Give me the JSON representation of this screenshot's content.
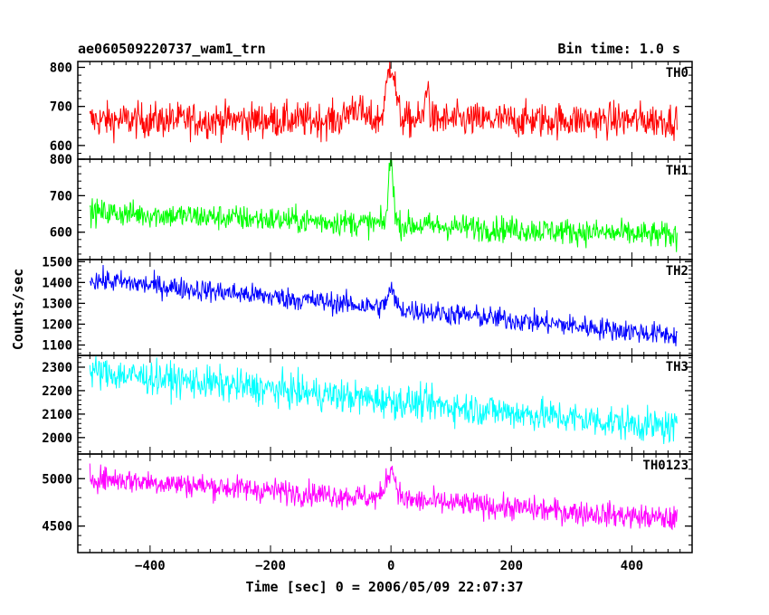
{
  "header": {
    "title": "ae060509220737_wam1_trn",
    "bin_time": "Bin time: 1.0 s"
  },
  "axes": {
    "ylabel": "Counts/sec",
    "xlabel": "Time [sec] 0 = 2006/05/09 22:07:37"
  },
  "chart_data": {
    "type": "line",
    "x_range": [
      -520,
      500
    ],
    "x_ticks": [
      -400,
      -200,
      0,
      200,
      400
    ],
    "x_tick_labels": [
      "−400",
      "−200",
      "0",
      "200",
      "400"
    ],
    "x_data_range": [
      -500,
      475
    ],
    "panels": [
      {
        "name": "TH0",
        "color": "#ff0000",
        "ylim": [
          565,
          815
        ],
        "yticks": [
          600,
          700,
          800
        ],
        "start": 665,
        "end": 665,
        "noise": 38,
        "peaks": [
          [
            0,
            810,
            7
          ],
          [
            -60,
            700,
            10
          ],
          [
            60,
            760,
            3
          ]
        ]
      },
      {
        "name": "TH1",
        "color": "#00ff00",
        "ylim": [
          525,
          800
        ],
        "yticks": [
          600,
          700,
          800
        ],
        "start": 655,
        "end": 590,
        "noise": 30,
        "peaks": [
          [
            0,
            800,
            4
          ]
        ]
      },
      {
        "name": "TH2",
        "color": "#0000ff",
        "ylim": [
          1050,
          1510
        ],
        "yticks": [
          1100,
          1200,
          1300,
          1400,
          1500
        ],
        "start": 1415,
        "end": 1145,
        "noise": 45,
        "peaks": [
          [
            0,
            1360,
            6
          ]
        ]
      },
      {
        "name": "TH3",
        "color": "#00ffff",
        "ylim": [
          1930,
          2350
        ],
        "yticks": [
          2000,
          2100,
          2200,
          2300
        ],
        "start": 2280,
        "end": 2040,
        "noise": 60,
        "peaks": []
      },
      {
        "name": "TH0123",
        "color": "#ff00ff",
        "ylim": [
          4220,
          5260
        ],
        "yticks": [
          4500,
          5000
        ],
        "start": 5010,
        "end": 4570,
        "noise": 110,
        "peaks": [
          [
            0,
            5100,
            8
          ]
        ]
      }
    ]
  }
}
